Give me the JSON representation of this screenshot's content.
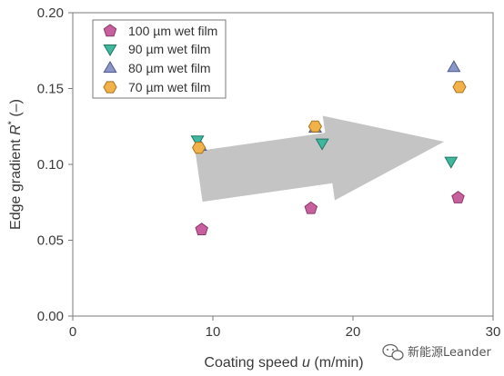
{
  "chart_data": {
    "type": "scatter",
    "xlabel_prefix": "Coating speed ",
    "xlabel_var": "u",
    "xlabel_suffix": " (m/min)",
    "ylabel_prefix": "Edge gradient ",
    "ylabel_var": "R",
    "ylabel_sup": "*",
    "ylabel_suffix": " (–)",
    "xlim": [
      0,
      30
    ],
    "ylim": [
      0.0,
      0.2
    ],
    "x_ticks": [
      0,
      10,
      20,
      30
    ],
    "x_tick_labels": [
      "0",
      "10",
      "20",
      "30"
    ],
    "y_ticks": [
      0.0,
      0.05,
      0.1,
      0.15,
      0.2
    ],
    "y_tick_labels": [
      "0.00",
      "0.05",
      "0.10",
      "0.15",
      "0.20"
    ],
    "grid": false,
    "legend_placement": "top-left",
    "series": [
      {
        "name": "100 µm wet film",
        "marker": "pentagon",
        "color": "#c8609e",
        "stroke": "#8a3a6a",
        "x": [
          9.2,
          17.0,
          27.5
        ],
        "y": [
          0.057,
          0.071,
          0.078
        ]
      },
      {
        "name": "90 µm wet film",
        "marker": "triangle-down",
        "color": "#3fb89e",
        "stroke": "#237565",
        "x": [
          8.9,
          17.8,
          27.0
        ],
        "y": [
          0.116,
          0.114,
          0.102
        ]
      },
      {
        "name": "80 µm wet film",
        "marker": "triangle-up",
        "color": "#8a96c8",
        "stroke": "#4e5a8e",
        "x": [
          9.1,
          17.3,
          27.2
        ],
        "y": [
          0.112,
          0.124,
          0.164
        ]
      },
      {
        "name": "70 µm wet film",
        "marker": "hexagon",
        "color": "#f2b24a",
        "stroke": "#a8741e",
        "x": [
          9.0,
          17.3,
          27.6
        ],
        "y": [
          0.111,
          0.125,
          0.151
        ]
      }
    ],
    "annotation_arrow": {
      "color": "#c4c4c4",
      "from": [
        9.0,
        0.092
      ],
      "to": [
        26.5,
        0.115
      ]
    }
  },
  "watermark": {
    "text": "新能源Leander",
    "icon": "wechat-bubble-icon"
  }
}
